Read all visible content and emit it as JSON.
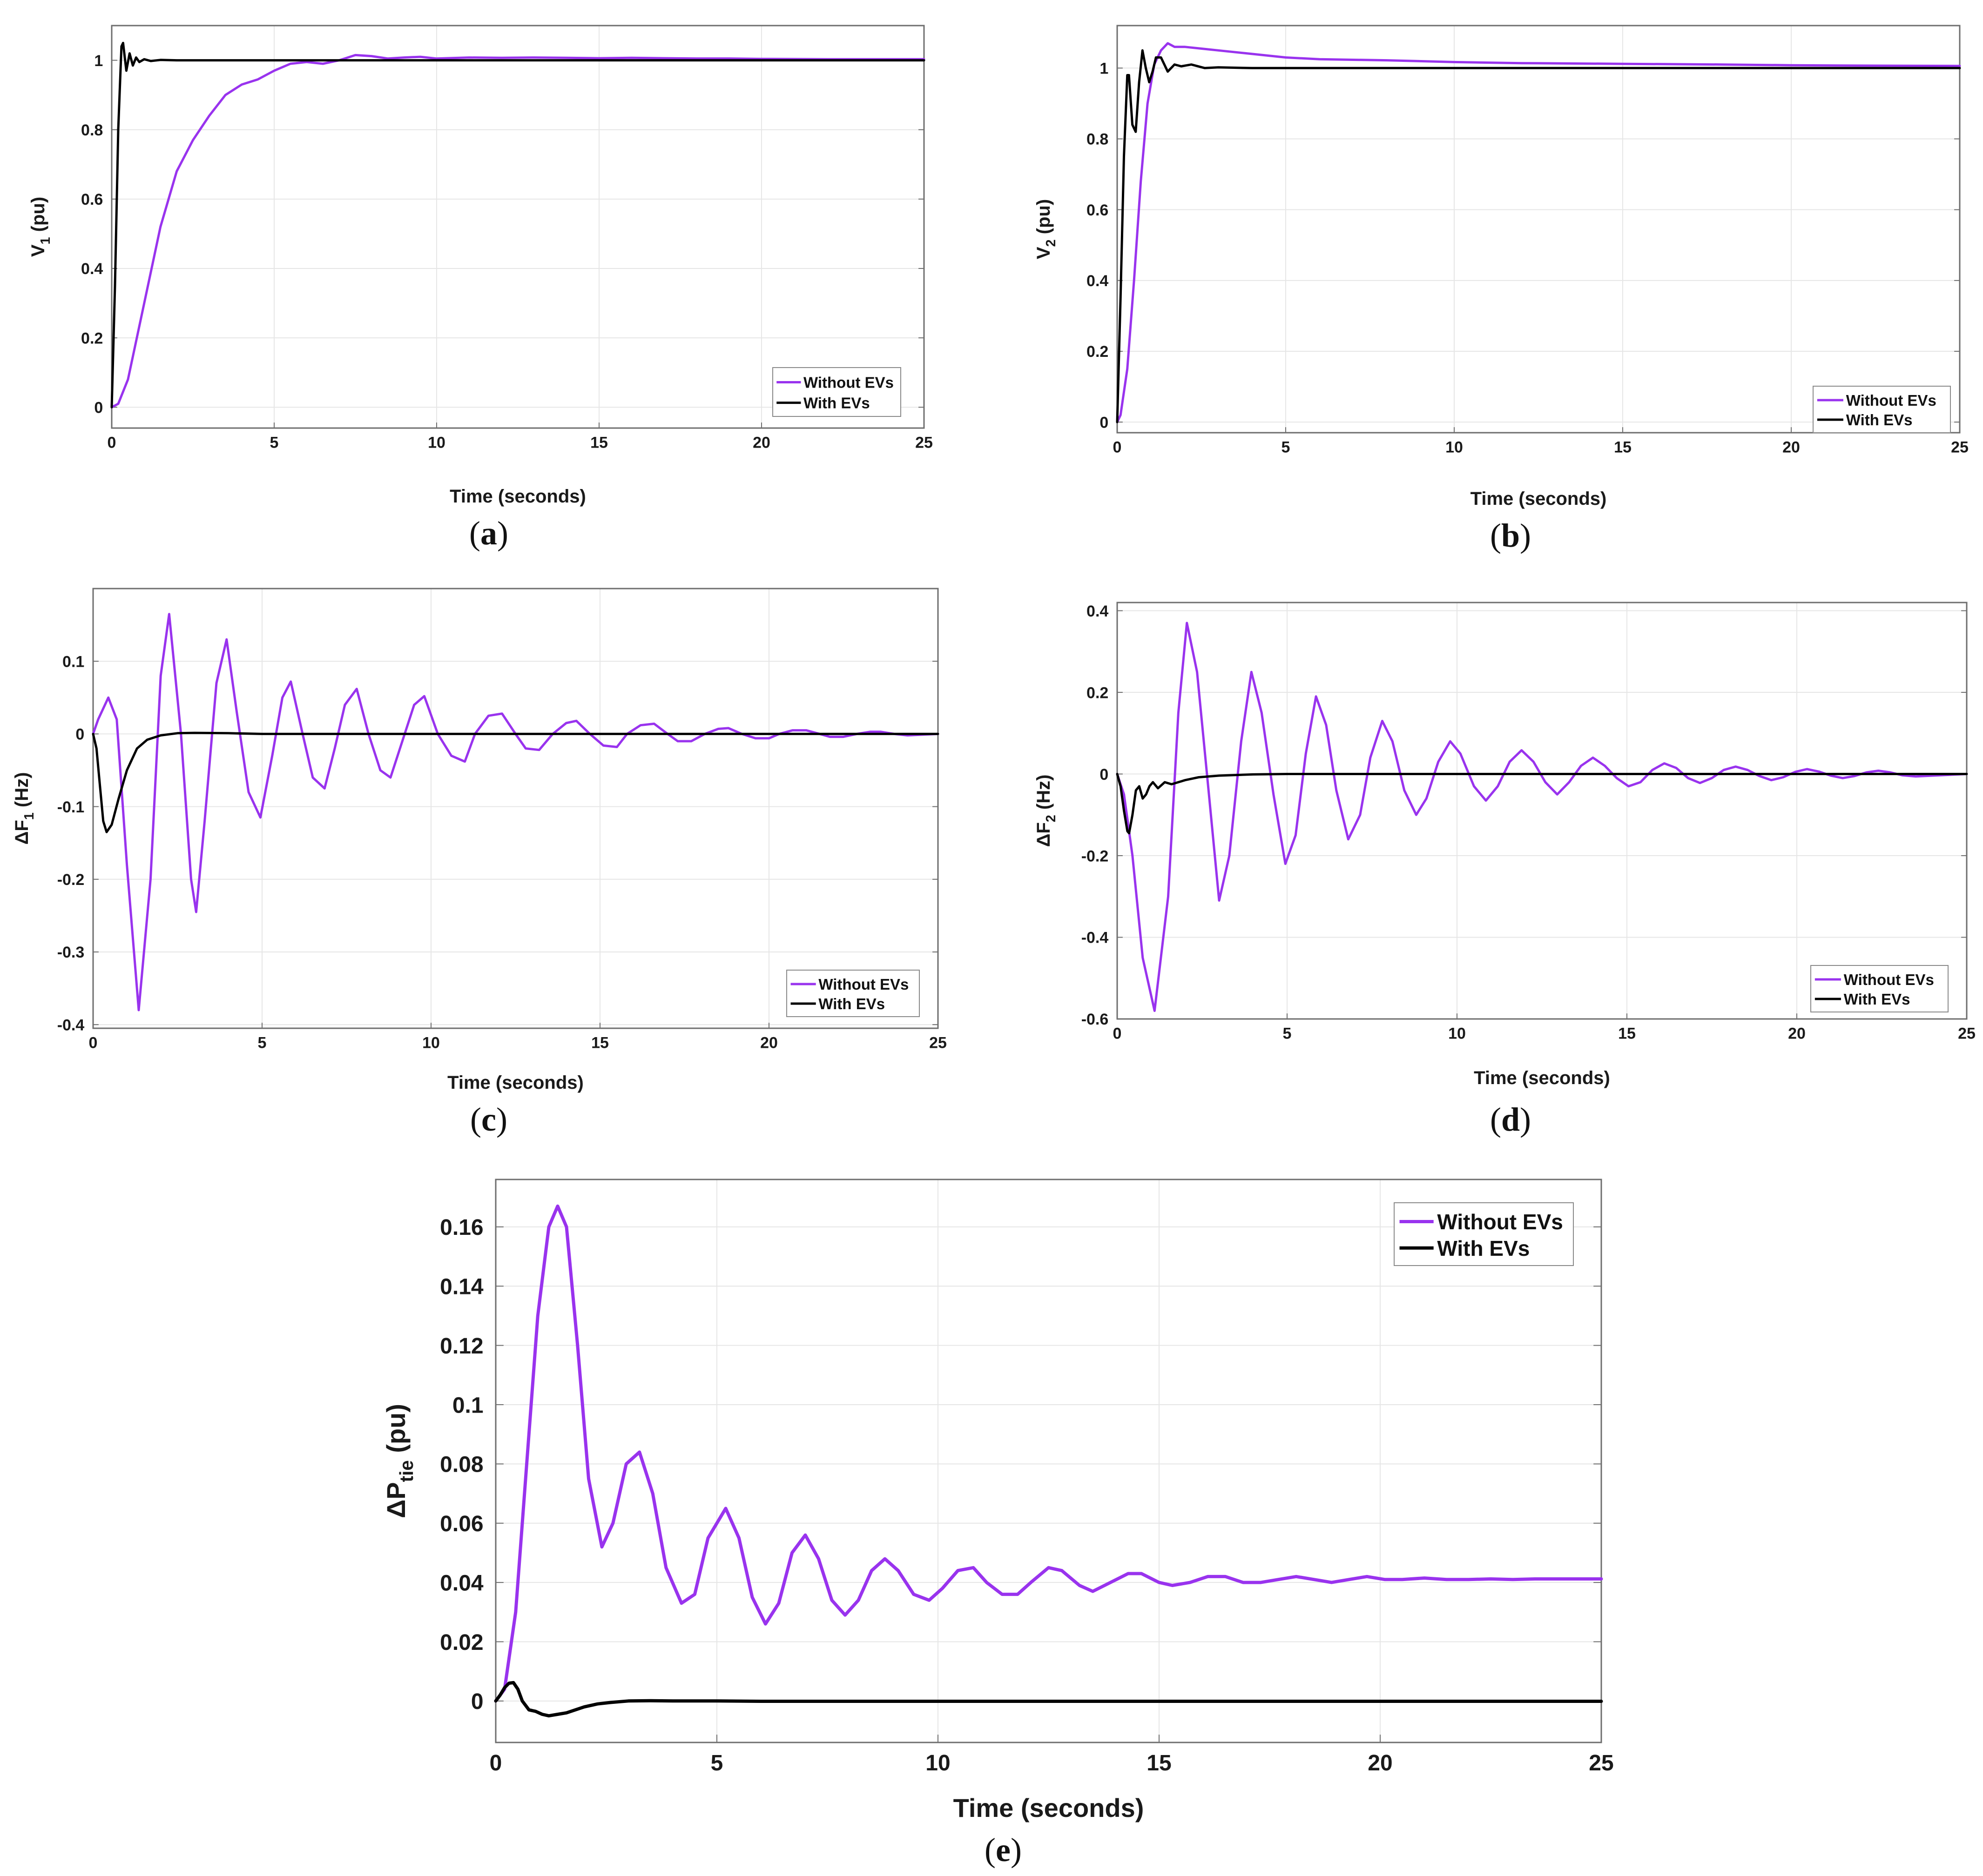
{
  "colors": {
    "without": "#9933ee",
    "with": "#000000",
    "grid": "#e6e6e6",
    "axis": "#6e6e6e"
  },
  "chart_data": [
    {
      "id": "a",
      "type": "line",
      "caption_letter": "a",
      "xlabel": "Time (seconds)",
      "ylabel": {
        "base": "V",
        "sub": "1",
        "suffix": " (pu)"
      },
      "xlim": [
        0,
        25
      ],
      "ylim": [
        -0.06,
        1.1
      ],
      "xticks": [
        0,
        5,
        10,
        15,
        20,
        25
      ],
      "yticks": [
        0,
        0.2,
        0.4,
        0.6,
        0.8,
        1
      ],
      "ytick_labels": [
        "0",
        "0.2",
        "0.4",
        "0.6",
        "0.8",
        "1"
      ],
      "legend": [
        "Without EVs",
        "With EVs"
      ],
      "series": [
        {
          "name": "Without EVs",
          "x": [
            0,
            0.2,
            0.5,
            1,
            1.5,
            2,
            2.5,
            3,
            3.5,
            4,
            4.5,
            5,
            5.5,
            6,
            6.5,
            7,
            7.5,
            8,
            8.5,
            9,
            9.5,
            10,
            11,
            12,
            13,
            14,
            15,
            16,
            17,
            18,
            19,
            20,
            22,
            25
          ],
          "y": [
            0,
            0.01,
            0.08,
            0.3,
            0.52,
            0.68,
            0.77,
            0.84,
            0.9,
            0.93,
            0.945,
            0.97,
            0.99,
            0.995,
            0.99,
            1.0,
            1.015,
            1.012,
            1.005,
            1.008,
            1.01,
            1.005,
            1.008,
            1.007,
            1.008,
            1.007,
            1.006,
            1.007,
            1.006,
            1.005,
            1.005,
            1.004,
            1.003,
            1.003
          ]
        },
        {
          "name": "With EVs",
          "x": [
            0,
            0.1,
            0.2,
            0.3,
            0.35,
            0.45,
            0.55,
            0.65,
            0.75,
            0.85,
            1,
            1.2,
            1.5,
            2,
            3,
            5,
            10,
            15,
            20,
            25
          ],
          "y": [
            0,
            0.35,
            0.8,
            1.04,
            1.05,
            0.97,
            1.02,
            0.985,
            1.008,
            0.995,
            1.003,
            0.998,
            1.001,
            1.0,
            1.0,
            1.0,
            1.0,
            1.0,
            1.0,
            1.0
          ]
        }
      ]
    },
    {
      "id": "b",
      "type": "line",
      "caption_letter": "b",
      "xlabel": "Time (seconds)",
      "ylabel": {
        "base": "V",
        "sub": "2",
        "suffix": " (pu)"
      },
      "xlim": [
        0,
        25
      ],
      "ylim": [
        -0.03,
        1.12
      ],
      "xticks": [
        0,
        5,
        10,
        15,
        20,
        25
      ],
      "yticks": [
        0,
        0.2,
        0.4,
        0.6,
        0.8,
        1
      ],
      "ytick_labels": [
        "0",
        "0.2",
        "0.4",
        "0.6",
        "0.8",
        "1"
      ],
      "legend": [
        "Without EVs",
        "With EVs"
      ],
      "series": [
        {
          "name": "Without EVs",
          "x": [
            0,
            0.1,
            0.3,
            0.5,
            0.7,
            0.9,
            1.1,
            1.3,
            1.5,
            1.7,
            2,
            2.5,
            3,
            4,
            5,
            6,
            8,
            10,
            12,
            15,
            18,
            20,
            22,
            25
          ],
          "y": [
            0,
            0.02,
            0.15,
            0.4,
            0.68,
            0.9,
            1.01,
            1.05,
            1.07,
            1.06,
            1.06,
            1.055,
            1.05,
            1.04,
            1.03,
            1.025,
            1.022,
            1.017,
            1.014,
            1.012,
            1.01,
            1.008,
            1.007,
            1.006
          ]
        },
        {
          "name": "With EVs",
          "x": [
            0,
            0.1,
            0.2,
            0.3,
            0.35,
            0.45,
            0.55,
            0.65,
            0.75,
            0.85,
            0.95,
            1.05,
            1.15,
            1.3,
            1.5,
            1.7,
            1.9,
            2.2,
            2.6,
            3,
            4,
            5,
            10,
            15,
            20,
            25
          ],
          "y": [
            0,
            0.35,
            0.75,
            0.98,
            0.98,
            0.84,
            0.82,
            0.96,
            1.05,
            1.0,
            0.96,
            0.99,
            1.03,
            1.03,
            0.99,
            1.01,
            1.005,
            1.01,
            1.0,
            1.002,
            1.0,
            1.0,
            1.0,
            1.0,
            1.0,
            1.0
          ]
        }
      ]
    },
    {
      "id": "c",
      "type": "line",
      "caption_letter": "c",
      "xlabel": "Time (seconds)",
      "ylabel": {
        "base": "ΔF",
        "sub": "1",
        "suffix": " (Hz)"
      },
      "xlim": [
        0,
        25
      ],
      "ylim": [
        -0.405,
        0.2
      ],
      "xticks": [
        0,
        5,
        10,
        15,
        20,
        25
      ],
      "yticks": [
        0.1,
        0,
        -0.1,
        -0.2,
        -0.3,
        -0.4
      ],
      "ytick_labels": [
        "0.1",
        "0",
        "-0.1",
        "-0.2",
        "-0.3",
        "-0.4"
      ],
      "legend": [
        "Without EVs",
        "With EVs"
      ],
      "series": [
        {
          "name": "Without EVs",
          "x": [
            0,
            0.15,
            0.45,
            0.7,
            1.0,
            1.35,
            1.7,
            2.0,
            2.25,
            2.6,
            2.9,
            3.05,
            3.3,
            3.65,
            3.95,
            4.25,
            4.6,
            4.95,
            5.3,
            5.6,
            5.85,
            6.2,
            6.5,
            6.85,
            7.15,
            7.45,
            7.8,
            8.15,
            8.5,
            8.8,
            9.15,
            9.5,
            9.8,
            10.2,
            10.6,
            11.0,
            11.3,
            11.7,
            12.1,
            12.5,
            12.8,
            13.2,
            13.6,
            14.0,
            14.3,
            14.7,
            15.1,
            15.5,
            15.8,
            16.2,
            16.6,
            17.0,
            17.3,
            17.7,
            18.1,
            18.5,
            18.8,
            19.2,
            19.6,
            20.0,
            20.3,
            20.7,
            21.1,
            21.5,
            21.8,
            22.2,
            22.6,
            23.0,
            23.3,
            23.7,
            24.1,
            25
          ],
          "y": [
            0,
            0.02,
            0.05,
            0.02,
            -0.18,
            -0.38,
            -0.2,
            0.08,
            0.165,
            0.0,
            -0.2,
            -0.245,
            -0.12,
            0.07,
            0.13,
            0.03,
            -0.08,
            -0.115,
            -0.03,
            0.05,
            0.072,
            0.0,
            -0.06,
            -0.075,
            -0.02,
            0.04,
            0.062,
            0.0,
            -0.05,
            -0.06,
            -0.01,
            0.04,
            0.052,
            0.0,
            -0.03,
            -0.038,
            0.0,
            0.025,
            0.028,
            0.0,
            -0.02,
            -0.022,
            0.0,
            0.015,
            0.018,
            0.0,
            -0.016,
            -0.018,
            0.0,
            0.012,
            0.014,
            0.0,
            -0.01,
            -0.01,
            0.0,
            0.007,
            0.008,
            0.0,
            -0.006,
            -0.006,
            0.0,
            0.005,
            0.005,
            0.0,
            -0.004,
            -0.004,
            0.0,
            0.003,
            0.003,
            0.0,
            -0.002,
            0.0
          ]
        },
        {
          "name": "With EVs",
          "x": [
            0,
            0.1,
            0.2,
            0.3,
            0.4,
            0.55,
            0.75,
            1.0,
            1.3,
            1.6,
            2.0,
            2.5,
            3.0,
            4,
            5,
            10,
            15,
            20,
            25
          ],
          "y": [
            0,
            -0.02,
            -0.07,
            -0.12,
            -0.135,
            -0.125,
            -0.09,
            -0.05,
            -0.02,
            -0.008,
            -0.002,
            0.001,
            0.0015,
            0.001,
            0.0,
            0.0,
            0.0,
            0.0,
            0.0
          ]
        }
      ]
    },
    {
      "id": "d",
      "type": "line",
      "caption_letter": "d",
      "xlabel": "Time (seconds)",
      "ylabel": {
        "base": "ΔF",
        "sub": "2",
        "suffix": " (Hz)"
      },
      "xlim": [
        0,
        25
      ],
      "ylim": [
        -0.6,
        0.42
      ],
      "xticks": [
        0,
        5,
        10,
        15,
        20,
        25
      ],
      "yticks": [
        0.4,
        0.2,
        0,
        -0.2,
        -0.4,
        -0.6
      ],
      "ytick_labels": [
        "0.4",
        "0.2",
        "0",
        "-0.2",
        "-0.4",
        "-0.6"
      ],
      "legend": [
        "Without EVs",
        "With EVs"
      ],
      "series": [
        {
          "name": "Without EVs",
          "x": [
            0,
            0.2,
            0.45,
            0.75,
            1.1,
            1.5,
            1.8,
            2.05,
            2.35,
            2.7,
            3.0,
            3.3,
            3.65,
            3.95,
            4.25,
            4.6,
            4.95,
            5.25,
            5.55,
            5.85,
            6.15,
            6.45,
            6.8,
            7.15,
            7.45,
            7.8,
            8.1,
            8.45,
            8.8,
            9.1,
            9.45,
            9.8,
            10.1,
            10.5,
            10.85,
            11.2,
            11.55,
            11.9,
            12.25,
            12.6,
            12.95,
            13.3,
            13.65,
            14.0,
            14.35,
            14.7,
            15.05,
            15.4,
            15.75,
            16.1,
            16.45,
            16.8,
            17.15,
            17.5,
            17.85,
            18.2,
            18.55,
            18.9,
            19.25,
            19.6,
            19.95,
            20.3,
            20.65,
            21.0,
            21.35,
            21.7,
            22.05,
            22.4,
            22.75,
            23.1,
            23.5,
            25
          ],
          "y": [
            0,
            -0.05,
            -0.2,
            -0.45,
            -0.58,
            -0.3,
            0.15,
            0.37,
            0.25,
            -0.05,
            -0.31,
            -0.2,
            0.08,
            0.25,
            0.15,
            -0.05,
            -0.22,
            -0.15,
            0.05,
            0.19,
            0.12,
            -0.04,
            -0.16,
            -0.1,
            0.04,
            0.13,
            0.08,
            -0.04,
            -0.1,
            -0.06,
            0.03,
            0.08,
            0.05,
            -0.03,
            -0.065,
            -0.03,
            0.03,
            0.058,
            0.03,
            -0.02,
            -0.05,
            -0.02,
            0.02,
            0.04,
            0.02,
            -0.01,
            -0.03,
            -0.02,
            0.01,
            0.026,
            0.015,
            -0.01,
            -0.022,
            -0.01,
            0.01,
            0.018,
            0.01,
            -0.005,
            -0.015,
            -0.008,
            0.005,
            0.012,
            0.006,
            -0.004,
            -0.01,
            -0.005,
            0.004,
            0.008,
            0.004,
            -0.003,
            -0.006,
            0.0
          ]
        },
        {
          "name": "With EVs",
          "x": [
            0,
            0.1,
            0.2,
            0.3,
            0.35,
            0.45,
            0.55,
            0.65,
            0.75,
            0.85,
            0.95,
            1.05,
            1.2,
            1.4,
            1.6,
            1.8,
            2.0,
            2.4,
            3.0,
            4,
            5,
            10,
            15,
            20,
            25
          ],
          "y": [
            0,
            -0.03,
            -0.09,
            -0.14,
            -0.145,
            -0.1,
            -0.04,
            -0.03,
            -0.06,
            -0.05,
            -0.03,
            -0.02,
            -0.035,
            -0.02,
            -0.025,
            -0.02,
            -0.015,
            -0.008,
            -0.004,
            -0.001,
            0.0,
            0.0,
            0.0,
            0.0,
            0.0
          ]
        }
      ]
    },
    {
      "id": "e",
      "type": "line",
      "caption_letter": "e",
      "xlabel": "Time (seconds)",
      "ylabel": {
        "base": "ΔP",
        "sub": "tie",
        "suffix": " (pu)"
      },
      "xlim": [
        0,
        25
      ],
      "ylim": [
        -0.014,
        0.176
      ],
      "xticks": [
        0,
        5,
        10,
        15,
        20,
        25
      ],
      "yticks": [
        0,
        0.02,
        0.04,
        0.06,
        0.08,
        0.1,
        0.12,
        0.14,
        0.16
      ],
      "ytick_labels": [
        "0",
        "0.02",
        "0.04",
        "0.06",
        "0.08",
        "0.1",
        "0.12",
        "0.14",
        "0.16"
      ],
      "legend": [
        "Without EVs",
        "With EVs"
      ],
      "series": [
        {
          "name": "Without EVs",
          "x": [
            0,
            0.2,
            0.45,
            0.7,
            0.95,
            1.2,
            1.4,
            1.6,
            1.85,
            2.1,
            2.4,
            2.65,
            2.95,
            3.25,
            3.55,
            3.85,
            4.2,
            4.5,
            4.8,
            5.2,
            5.5,
            5.8,
            6.1,
            6.4,
            6.7,
            7.0,
            7.3,
            7.6,
            7.9,
            8.2,
            8.5,
            8.8,
            9.1,
            9.45,
            9.8,
            10.1,
            10.45,
            10.8,
            11.1,
            11.45,
            11.8,
            12.1,
            12.5,
            12.8,
            13.2,
            13.5,
            13.9,
            14.3,
            14.6,
            15.0,
            15.3,
            15.7,
            16.1,
            16.5,
            16.9,
            17.3,
            17.7,
            18.1,
            18.5,
            18.9,
            19.3,
            19.7,
            20.1,
            20.5,
            21.0,
            21.5,
            22.0,
            22.5,
            23.0,
            23.5,
            24.0,
            24.5,
            25
          ],
          "y": [
            0,
            0.004,
            0.03,
            0.08,
            0.13,
            0.16,
            0.167,
            0.16,
            0.12,
            0.075,
            0.052,
            0.06,
            0.08,
            0.084,
            0.07,
            0.045,
            0.033,
            0.036,
            0.055,
            0.065,
            0.055,
            0.035,
            0.026,
            0.033,
            0.05,
            0.056,
            0.048,
            0.034,
            0.029,
            0.034,
            0.044,
            0.048,
            0.044,
            0.036,
            0.034,
            0.038,
            0.044,
            0.045,
            0.04,
            0.036,
            0.036,
            0.04,
            0.045,
            0.044,
            0.039,
            0.037,
            0.04,
            0.043,
            0.043,
            0.04,
            0.039,
            0.04,
            0.042,
            0.042,
            0.04,
            0.04,
            0.041,
            0.042,
            0.041,
            0.04,
            0.041,
            0.042,
            0.041,
            0.041,
            0.0415,
            0.041,
            0.041,
            0.0412,
            0.041,
            0.0412,
            0.0412,
            0.0412,
            0.0412
          ]
        },
        {
          "name": "With EVs",
          "x": [
            0,
            0.1,
            0.2,
            0.3,
            0.4,
            0.5,
            0.6,
            0.75,
            0.9,
            1.05,
            1.2,
            1.4,
            1.6,
            1.8,
            2.0,
            2.3,
            2.6,
            3.0,
            3.5,
            4,
            5,
            6,
            8,
            10,
            15,
            20,
            25
          ],
          "y": [
            0,
            0.002,
            0.0045,
            0.006,
            0.0062,
            0.004,
            0.0,
            -0.003,
            -0.0035,
            -0.0045,
            -0.005,
            -0.0045,
            -0.004,
            -0.003,
            -0.002,
            -0.001,
            -0.0005,
            0.0,
            0.0001,
            0.0,
            0.0,
            -0.0001,
            -0.0001,
            -0.0001,
            -0.0001,
            -0.0001,
            -0.0001
          ]
        }
      ]
    }
  ]
}
